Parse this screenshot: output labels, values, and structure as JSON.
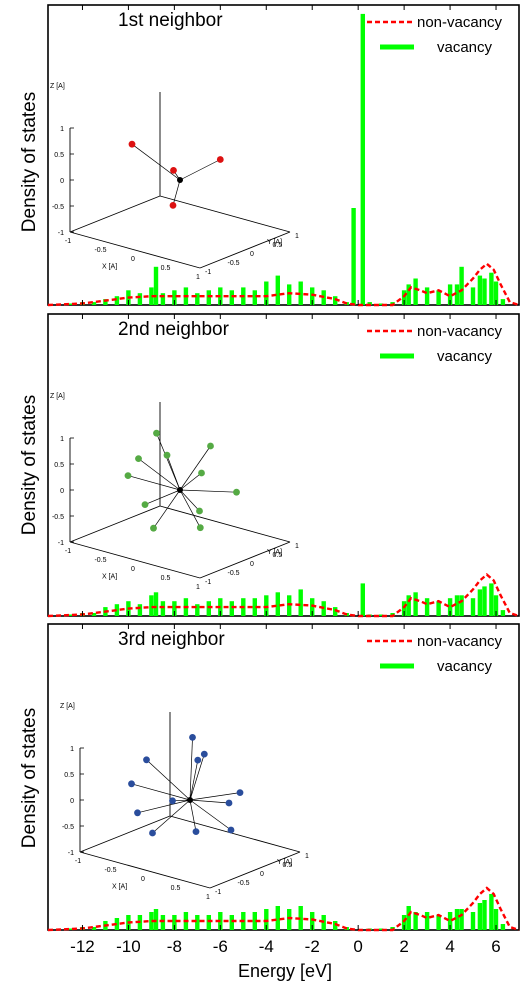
{
  "figure": {
    "ylabel": "Density of states",
    "xlabel": "Energy [eV]",
    "x_ticks": [
      -12,
      -10,
      -8,
      -6,
      -4,
      -2,
      0,
      2,
      4,
      6
    ],
    "colors": {
      "vacancy": "#00ff00",
      "non_vacancy": "#ff0000",
      "atom_center": "#000000"
    }
  },
  "chart_data": [
    {
      "type": "bar",
      "title": "1st neighbor",
      "xlim": [
        -13.5,
        7.0
      ],
      "ylim": [
        0,
        1.0
      ],
      "legend": [
        "non-vacancy",
        "vacancy"
      ],
      "legend_position": "top-right",
      "series": [
        {
          "name": "vacancy",
          "style": "bars",
          "x": [
            -12.5,
            -12,
            -11.5,
            -11,
            -10.5,
            -10,
            -9.5,
            -9,
            -8.8,
            -8.5,
            -8,
            -7.5,
            -7,
            -6.5,
            -6,
            -5.5,
            -5,
            -4.5,
            -4,
            -3.5,
            -3,
            -2.5,
            -2,
            -1.5,
            -1,
            -0.5,
            -0.2,
            0.2,
            0.5,
            1,
            1.5,
            2,
            2.2,
            2.5,
            3,
            3.5,
            4,
            4.3,
            4.5,
            5,
            5.3,
            5.5,
            5.8,
            6,
            6.3
          ],
          "values": [
            0.005,
            0.01,
            0.01,
            0.02,
            0.03,
            0.05,
            0.04,
            0.06,
            0.13,
            0.04,
            0.05,
            0.06,
            0.04,
            0.05,
            0.06,
            0.05,
            0.06,
            0.05,
            0.08,
            0.1,
            0.07,
            0.08,
            0.06,
            0.05,
            0.03,
            0.01,
            0.33,
            0.99,
            0.01,
            0.005,
            0.01,
            0.05,
            0.07,
            0.09,
            0.06,
            0.05,
            0.07,
            0.07,
            0.13,
            0.06,
            0.1,
            0.09,
            0.11,
            0.08,
            0.02
          ]
        },
        {
          "name": "non-vacancy",
          "style": "dashed-line",
          "x": [
            -13.5,
            -12,
            -11,
            -10,
            -9,
            -8,
            -7,
            -6,
            -5,
            -4,
            -3,
            -2,
            -1,
            -0.5,
            0,
            0.5,
            1,
            1.5,
            2,
            2.3,
            2.7,
            3,
            3.5,
            4,
            4.5,
            5,
            5.3,
            5.6,
            5.9,
            6.2,
            6.6,
            7
          ],
          "values": [
            0,
            0.005,
            0.015,
            0.025,
            0.03,
            0.03,
            0.03,
            0.03,
            0.03,
            0.03,
            0.04,
            0.035,
            0.02,
            0.005,
            0,
            0,
            0,
            0,
            0.03,
            0.06,
            0.05,
            0.04,
            0.05,
            0.03,
            0.05,
            0.09,
            0.12,
            0.14,
            0.12,
            0.07,
            0.01,
            0
          ]
        }
      ]
    },
    {
      "type": "bar",
      "title": "2nd neighbor",
      "xlim": [
        -13.5,
        7.0
      ],
      "ylim": [
        0,
        1.0
      ],
      "legend": [
        "non-vacancy",
        "vacancy"
      ],
      "legend_position": "top-right",
      "series": [
        {
          "name": "vacancy",
          "style": "bars",
          "x": [
            -12.5,
            -12,
            -11.5,
            -11,
            -10.5,
            -10,
            -9.5,
            -9,
            -8.8,
            -8.5,
            -8,
            -7.5,
            -7,
            -6.5,
            -6,
            -5.5,
            -5,
            -4.5,
            -4,
            -3.5,
            -3,
            -2.5,
            -2,
            -1.5,
            -1,
            -0.5,
            0.2,
            0.5,
            1,
            1.5,
            2,
            2.2,
            2.5,
            3,
            3.5,
            4,
            4.3,
            4.5,
            5,
            5.3,
            5.5,
            5.8,
            6,
            6.3
          ],
          "values": [
            0.005,
            0.01,
            0.01,
            0.03,
            0.04,
            0.05,
            0.04,
            0.07,
            0.08,
            0.05,
            0.05,
            0.06,
            0.04,
            0.05,
            0.06,
            0.05,
            0.06,
            0.06,
            0.07,
            0.08,
            0.07,
            0.09,
            0.06,
            0.05,
            0.03,
            0.01,
            0.11,
            0.005,
            0.005,
            0.01,
            0.05,
            0.07,
            0.08,
            0.06,
            0.05,
            0.06,
            0.07,
            0.07,
            0.06,
            0.09,
            0.1,
            0.11,
            0.07,
            0.02
          ]
        },
        {
          "name": "non-vacancy",
          "style": "dashed-line",
          "x": [
            -13.5,
            -12,
            -11,
            -10,
            -9,
            -8,
            -7,
            -6,
            -5,
            -4,
            -3,
            -2,
            -1,
            -0.5,
            0,
            0.5,
            1,
            1.5,
            2,
            2.3,
            2.7,
            3,
            3.5,
            4,
            4.5,
            5,
            5.3,
            5.6,
            5.9,
            6.2,
            6.6,
            7
          ],
          "values": [
            0,
            0.005,
            0.015,
            0.025,
            0.03,
            0.03,
            0.03,
            0.03,
            0.03,
            0.03,
            0.04,
            0.035,
            0.02,
            0.005,
            0,
            0,
            0,
            0,
            0.03,
            0.06,
            0.05,
            0.04,
            0.05,
            0.03,
            0.05,
            0.09,
            0.12,
            0.14,
            0.12,
            0.07,
            0.01,
            0
          ]
        }
      ]
    },
    {
      "type": "bar",
      "title": "3rd neighbor",
      "xlim": [
        -13.5,
        7.0
      ],
      "ylim": [
        0,
        1.0
      ],
      "legend": [
        "non-vacancy",
        "vacancy"
      ],
      "legend_position": "top-right",
      "series": [
        {
          "name": "vacancy",
          "style": "bars",
          "x": [
            -12.5,
            -12,
            -11.5,
            -11,
            -10.5,
            -10,
            -9.5,
            -9,
            -8.8,
            -8.5,
            -8,
            -7.5,
            -7,
            -6.5,
            -6,
            -5.5,
            -5,
            -4.5,
            -4,
            -3.5,
            -3,
            -2.5,
            -2,
            -1.5,
            -1,
            -0.5,
            0.5,
            1,
            1.5,
            2,
            2.2,
            2.5,
            3,
            3.5,
            4,
            4.3,
            4.5,
            5,
            5.3,
            5.5,
            5.8,
            6,
            6.3
          ],
          "values": [
            0.005,
            0.01,
            0.01,
            0.03,
            0.04,
            0.05,
            0.05,
            0.06,
            0.07,
            0.05,
            0.05,
            0.06,
            0.05,
            0.05,
            0.06,
            0.05,
            0.06,
            0.06,
            0.07,
            0.08,
            0.07,
            0.08,
            0.06,
            0.05,
            0.03,
            0.01,
            0.005,
            0.005,
            0.01,
            0.05,
            0.08,
            0.06,
            0.06,
            0.05,
            0.06,
            0.07,
            0.07,
            0.06,
            0.09,
            0.1,
            0.12,
            0.07,
            0.02
          ]
        },
        {
          "name": "non-vacancy",
          "style": "dashed-line",
          "x": [
            -13.5,
            -12,
            -11,
            -10,
            -9,
            -8,
            -7,
            -6,
            -5,
            -4,
            -3,
            -2,
            -1,
            -0.5,
            0,
            0.5,
            1,
            1.5,
            2,
            2.3,
            2.7,
            3,
            3.5,
            4,
            4.5,
            5,
            5.3,
            5.6,
            5.9,
            6.2,
            6.6,
            7
          ],
          "values": [
            0,
            0.005,
            0.015,
            0.025,
            0.03,
            0.03,
            0.03,
            0.03,
            0.03,
            0.03,
            0.04,
            0.035,
            0.02,
            0.005,
            0,
            0,
            0,
            0,
            0.03,
            0.06,
            0.05,
            0.04,
            0.05,
            0.03,
            0.05,
            0.09,
            0.12,
            0.14,
            0.12,
            0.07,
            0.01,
            0
          ]
        }
      ]
    }
  ],
  "insets": [
    {
      "z_label": "Z [A]",
      "x_label": "X [A]",
      "y_label": "Y [A]",
      "z_ticks": [
        "1",
        "0.5",
        "0",
        "-0.5",
        "-1"
      ],
      "x_ticks": [
        "-1",
        "-0.5",
        "0",
        "0.5",
        "1"
      ],
      "y_ticks": [
        "1",
        "0.5",
        "0",
        "-0.5",
        "-1"
      ],
      "atom_color": "#dd1111",
      "atoms": [
        [
          -0.6,
          -0.2,
          0.55
        ],
        [
          0.55,
          0.1,
          0.55
        ],
        [
          -0.1,
          0.0,
          0.15
        ],
        [
          0.1,
          -0.3,
          -0.35
        ]
      ]
    },
    {
      "z_label": "Z [A]",
      "x_label": "X [A]",
      "y_label": "Y [A]",
      "z_ticks": [
        "1",
        "0.5",
        "0",
        "-0.5",
        "-1"
      ],
      "x_ticks": [
        "-1",
        "-0.5",
        "0",
        "0.5",
        "1"
      ],
      "y_ticks": [
        "1",
        "0.5",
        "0",
        "-0.5",
        "-1"
      ],
      "atom_color": "#55aa44",
      "atoms": [
        [
          -0.5,
          0.2,
          0.85
        ],
        [
          0.4,
          0.1,
          0.95
        ],
        [
          -0.2,
          0.0,
          0.6
        ],
        [
          -0.5,
          -0.2,
          0.5
        ],
        [
          0.4,
          -0.1,
          0.5
        ],
        [
          0.8,
          0.1,
          0.2
        ],
        [
          -0.8,
          0.0,
          0.0
        ],
        [
          -0.4,
          -0.2,
          -0.35
        ],
        [
          0.3,
          0.0,
          -0.3
        ],
        [
          0.45,
          -0.2,
          -0.5
        ],
        [
          -0.2,
          -0.3,
          -0.7
        ]
      ]
    },
    {
      "z_label": "Z [A]",
      "x_label": "X [A]",
      "y_label": "Y [A]",
      "z_ticks": [
        "1",
        "0.5",
        "0",
        "-0.5",
        "-1"
      ],
      "x_ticks": [
        "-1",
        "-0.5",
        "0",
        "0.5",
        "1"
      ],
      "y_ticks": [
        "1",
        "0.5",
        "0",
        "-0.5",
        "-1"
      ],
      "atom_color": "#2a4d9c",
      "atoms": [
        [
          -0.1,
          0.2,
          1.1
        ],
        [
          0.05,
          0.1,
          0.75
        ],
        [
          0.15,
          0.1,
          0.9
        ],
        [
          -0.6,
          -0.1,
          0.6
        ],
        [
          0.7,
          0.1,
          0.35
        ],
        [
          0.6,
          0.0,
          0.15
        ],
        [
          -0.9,
          0.0,
          0.0
        ],
        [
          -0.2,
          -0.1,
          -0.05
        ],
        [
          -0.6,
          -0.3,
          -0.35
        ],
        [
          0.7,
          -0.1,
          -0.3
        ],
        [
          0.3,
          -0.3,
          -0.4
        ],
        [
          -0.3,
          -0.4,
          -0.6
        ]
      ]
    }
  ]
}
